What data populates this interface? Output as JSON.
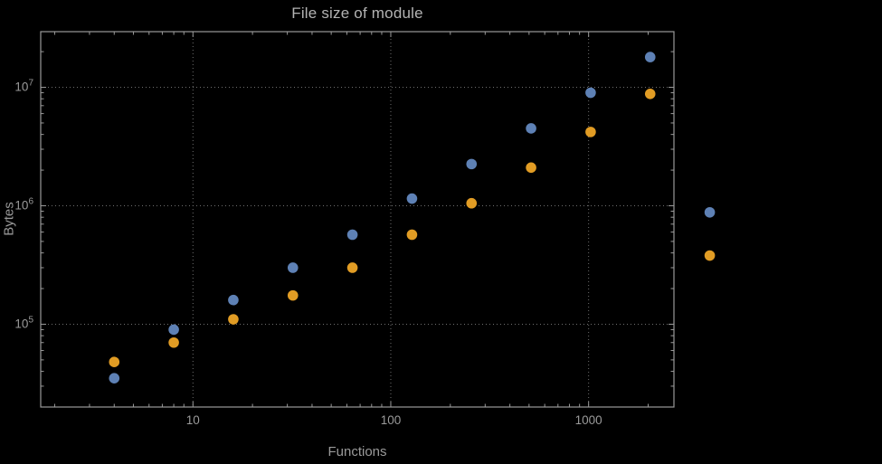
{
  "chart_data": {
    "type": "scatter",
    "title": "File size of module",
    "xlabel": "Functions",
    "ylabel": "Bytes",
    "x_scale": "log",
    "y_scale": "log",
    "grid": "dotted-major",
    "legend": "none",
    "x": [
      4,
      8,
      16,
      32,
      64,
      128,
      256,
      512,
      1024,
      2048,
      4096
    ],
    "series": [
      {
        "name": "series-blue",
        "color": "#5e81b5",
        "values": [
          35000,
          90000,
          160000,
          300000,
          570000,
          1150000,
          2250000,
          4500000,
          9000000,
          18000000,
          880000
        ]
      },
      {
        "name": "series-orange",
        "color": "#e19c24",
        "values": [
          48000,
          70000,
          110000,
          175000,
          300000,
          570000,
          1050000,
          2100000,
          4200000,
          8800000,
          380000
        ]
      }
    ],
    "x_ticks": [
      {
        "value": 10,
        "label": "10"
      },
      {
        "value": 100,
        "label": "100"
      },
      {
        "value": 1000,
        "label": "1000"
      }
    ],
    "y_ticks": [
      {
        "value": 100000,
        "base": "10",
        "exp": "5"
      },
      {
        "value": 1000000,
        "base": "10",
        "exp": "6"
      },
      {
        "value": 10000000,
        "base": "10",
        "exp": "7"
      }
    ],
    "x_range": [
      1.7,
      2700
    ],
    "y_range": [
      20000,
      29500000
    ],
    "background": "#000000",
    "frame_color": "#9a9a9a",
    "grid_color": "#6f6f6f",
    "text_color": "#9a9a9a",
    "title_color": "#b3b3b3"
  }
}
